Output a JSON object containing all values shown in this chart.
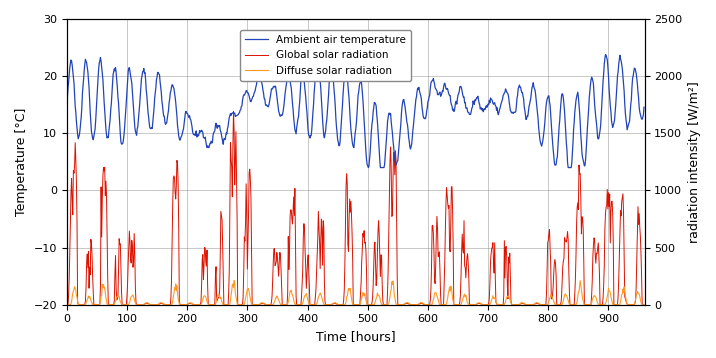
{
  "xlabel": "Time [hours]",
  "ylabel_left": "Temperature [°C]",
  "ylabel_right": "radiation intensity [W/m²]",
  "xlim": [
    0,
    960
  ],
  "ylim_left": [
    -20,
    30
  ],
  "ylim_right": [
    0,
    2500
  ],
  "xticks": [
    0,
    100,
    200,
    300,
    400,
    500,
    600,
    700,
    800,
    900
  ],
  "yticks_left": [
    -20,
    -10,
    0,
    10,
    20,
    30
  ],
  "yticks_right": [
    0,
    500,
    1000,
    1500,
    2000,
    2500
  ],
  "temp_color": "#2244bb",
  "global_rad_color": "#dd1100",
  "diffuse_rad_color": "#ff9922",
  "legend_labels": [
    "Ambient air temperature",
    "Global solar radiation",
    "Diffuse solar radiation"
  ],
  "seed": 42
}
